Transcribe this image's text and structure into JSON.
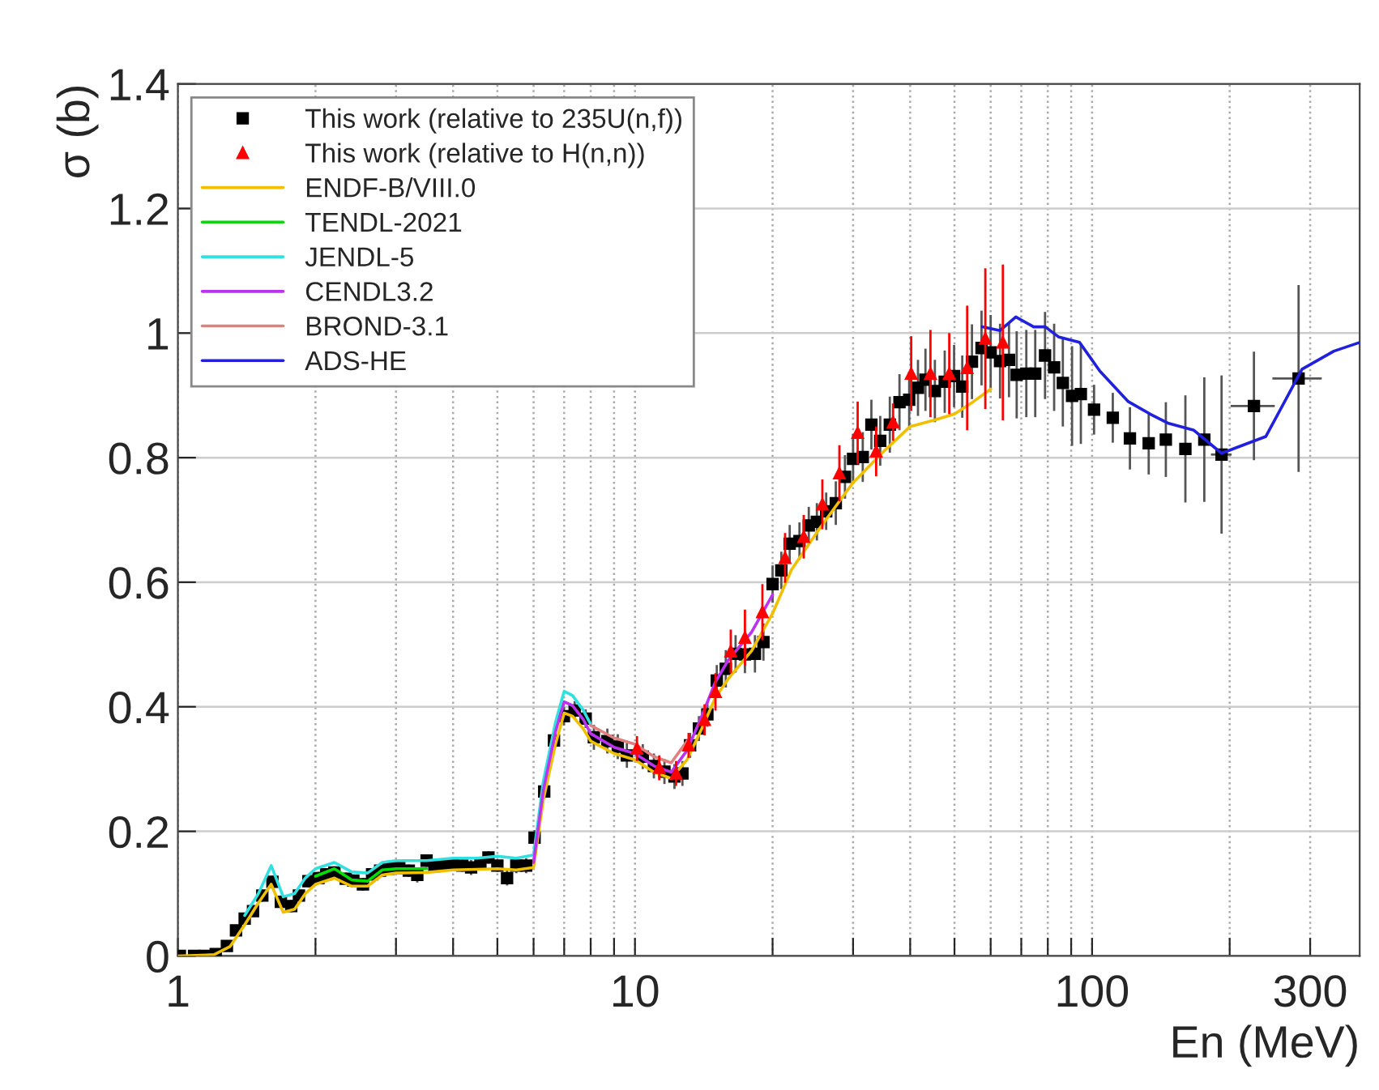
{
  "chart_data": {
    "type": "scatter",
    "xlabel": "En (MeV)",
    "ylabel": "σ (b)",
    "log": "x",
    "xlim": [
      1,
      385
    ],
    "ylim": [
      0,
      1.4
    ],
    "xticks": [
      1,
      {
        "value": 2,
        "label": null
      },
      {
        "value": 3,
        "label": null
      },
      {
        "value": 4,
        "label": null
      },
      {
        "value": 5,
        "label": null
      },
      {
        "value": 6,
        "label": null
      },
      {
        "value": 7,
        "label": null
      },
      {
        "value": 8,
        "label": null
      },
      {
        "value": 9,
        "label": null
      },
      10,
      {
        "value": 20,
        "label": null
      },
      {
        "value": 30,
        "label": null
      },
      {
        "value": 40,
        "label": null
      },
      {
        "value": 50,
        "label": null
      },
      {
        "value": 60,
        "label": null
      },
      {
        "value": 70,
        "label": null
      },
      {
        "value": 80,
        "label": null
      },
      {
        "value": 90,
        "label": null
      },
      100,
      {
        "value": 200,
        "label": null
      },
      300
    ],
    "yticks": [
      0,
      0.2,
      0.4,
      0.6,
      0.8,
      1,
      1.2,
      1.4
    ],
    "grid": true,
    "legend": "top left",
    "series": [
      {
        "name": "This work (relative to 235U(n,f))",
        "marker": "square",
        "color": "#000000",
        "x": [
          1.01,
          1.085,
          1.146,
          1.21,
          1.28,
          1.34,
          1.4,
          1.46,
          1.53,
          1.61,
          1.68,
          1.77,
          1.84,
          1.93,
          2.03,
          2.11,
          2.2,
          2.33,
          2.42,
          2.54,
          2.66,
          2.77,
          2.89,
          3.05,
          3.2,
          3.34,
          3.5,
          3.64,
          3.79,
          4.0,
          4.19,
          4.38,
          4.59,
          4.78,
          5.0,
          5.25,
          5.5,
          5.78,
          6.03,
          6.33,
          6.65,
          6.99,
          7.38,
          7.8,
          8.13,
          8.7,
          9.17,
          9.6,
          10.4,
          11.0,
          11.6,
          12.2,
          12.7,
          13.2,
          13.8,
          14.4,
          15.1,
          15.8,
          16.6,
          17.4,
          18.3,
          19.1,
          20.0,
          20.9,
          21.8,
          22.9,
          24.0,
          25.0,
          26.2,
          27.5,
          28.8,
          30.0,
          31.5,
          32.9,
          34.4,
          36.1,
          37.9,
          39.8,
          41.6,
          43.2,
          45.3,
          47.6,
          49.9,
          52.0,
          54.6,
          57.3,
          60.0,
          62.9,
          65.8,
          68.4,
          71.8,
          75.1,
          78.9,
          82.6,
          86.3,
          90.4,
          94.5,
          101,
          111,
          121,
          133,
          145,
          160,
          176,
          192,
          226,
          283
        ],
        "values": [
          0,
          0,
          0,
          0.003,
          0.016,
          0.041,
          0.06,
          0.072,
          0.097,
          0.119,
          0.087,
          0.08,
          0.097,
          0.12,
          0.125,
          0.131,
          0.134,
          0.124,
          0.121,
          0.115,
          0.131,
          0.137,
          0.14,
          0.141,
          0.137,
          0.13,
          0.153,
          0.144,
          0.146,
          0.146,
          0.145,
          0.142,
          0.149,
          0.158,
          0.145,
          0.125,
          0.145,
          0.145,
          0.19,
          0.264,
          0.346,
          0.385,
          0.394,
          0.381,
          0.351,
          0.345,
          0.336,
          0.322,
          0.32,
          0.305,
          0.296,
          0.288,
          0.293,
          0.338,
          0.365,
          0.388,
          0.442,
          0.461,
          0.485,
          0.484,
          0.485,
          0.504,
          0.597,
          0.619,
          0.662,
          0.666,
          0.691,
          0.697,
          0.714,
          0.727,
          0.769,
          0.798,
          0.801,
          0.853,
          0.827,
          0.853,
          0.889,
          0.893,
          0.912,
          0.925,
          0.907,
          0.922,
          0.931,
          0.914,
          0.954,
          0.976,
          0.969,
          0.955,
          0.957,
          0.933,
          0.935,
          0.935,
          0.964,
          0.945,
          0.92,
          0.899,
          0.902,
          0.877,
          0.864,
          0.831,
          0.823,
          0.829,
          0.814,
          0.829,
          0.805,
          0.883,
          0.927
        ],
        "errors": [
          0.005,
          0.005,
          0.005,
          0.005,
          0.006,
          0.008,
          0.008,
          0.008,
          0.01,
          0.01,
          0.01,
          0.01,
          0.01,
          0.01,
          0.01,
          0.01,
          0.01,
          0.01,
          0.01,
          0.01,
          0.01,
          0.01,
          0.01,
          0.01,
          0.01,
          0.012,
          0.01,
          0.01,
          0.01,
          0.01,
          0.01,
          0.012,
          0.01,
          0.01,
          0.01,
          0.012,
          0.012,
          0.012,
          0.012,
          0.012,
          0.015,
          0.015,
          0.015,
          0.015,
          0.02,
          0.02,
          0.02,
          0.02,
          0.02,
          0.02,
          0.02,
          0.02,
          0.02,
          0.02,
          0.02,
          0.02,
          0.025,
          0.03,
          0.03,
          0.03,
          0.03,
          0.03,
          0.03,
          0.03,
          0.03,
          0.03,
          0.03,
          0.03,
          0.03,
          0.035,
          0.035,
          0.04,
          0.04,
          0.04,
          0.04,
          0.045,
          0.045,
          0.045,
          0.045,
          0.05,
          0.05,
          0.05,
          0.05,
          0.05,
          0.06,
          0.06,
          0.06,
          0.06,
          0.06,
          0.07,
          0.07,
          0.07,
          0.07,
          0.07,
          0.07,
          0.08,
          0.08,
          0.04,
          0.04,
          0.05,
          0.05,
          0.06,
          0.086,
          0.1,
          0.127,
          0.087,
          0.15
        ],
        "xerrors": [
          null,
          null,
          null,
          null,
          null,
          null,
          null,
          null,
          null,
          null,
          null,
          null,
          null,
          null,
          null,
          null,
          null,
          null,
          null,
          null,
          null,
          null,
          null,
          null,
          null,
          null,
          null,
          null,
          null,
          null,
          null,
          null,
          null,
          null,
          null,
          null,
          null,
          null,
          null,
          null,
          null,
          null,
          null,
          null,
          null,
          null,
          null,
          null,
          null,
          null,
          null,
          null,
          null,
          null,
          null,
          null,
          null,
          null,
          null,
          null,
          null,
          null,
          null,
          null,
          null,
          null,
          null,
          null,
          null,
          null,
          null,
          null,
          null,
          null,
          null,
          null,
          null,
          null,
          null,
          null,
          null,
          null,
          null,
          null,
          null,
          null,
          null,
          null,
          null,
          null,
          null,
          null,
          null,
          null,
          null,
          null,
          null,
          null,
          null,
          null,
          null,
          null,
          null,
          null,
          10,
          25,
          35
        ]
      },
      {
        "name": "This work (relative to H(n,n))",
        "marker": "triangle",
        "color": "#ff0000",
        "x": [
          10.1,
          11.3,
          12.3,
          13.1,
          14.2,
          15.0,
          16.2,
          17.4,
          19.0,
          21.3,
          23.4,
          25.7,
          28.0,
          30.7,
          33.7,
          36.7,
          40.2,
          44.3,
          48.7,
          53.3,
          58.4,
          63.8
        ],
        "values": [
          0.333,
          0.302,
          0.293,
          0.338,
          0.379,
          0.424,
          0.489,
          0.511,
          0.552,
          0.639,
          0.673,
          0.725,
          0.775,
          0.84,
          0.81,
          0.857,
          0.935,
          0.935,
          0.935,
          0.944,
          0.991,
          0.985
        ],
        "errors": [
          0.02,
          0.02,
          0.02,
          0.02,
          0.025,
          0.03,
          0.035,
          0.045,
          0.045,
          0.04,
          0.035,
          0.04,
          0.045,
          0.05,
          0.04,
          0.03,
          0.06,
          0.07,
          0.065,
          0.1,
          0.113,
          0.125
        ]
      },
      {
        "name": "ENDF-B/VIII.0",
        "type": "line",
        "color": "#f0c000",
        "x": [
          1,
          1.2,
          1.3,
          1.4,
          1.5,
          1.6,
          1.7,
          1.8,
          1.9,
          2,
          2.2,
          2.4,
          2.6,
          2.8,
          3,
          3.5,
          4,
          4.5,
          5,
          5.5,
          6,
          6.3,
          6.7,
          7,
          7.3,
          7.7,
          8,
          9,
          10,
          11,
          12,
          13,
          14,
          15,
          16,
          18,
          20,
          22,
          25,
          28,
          30,
          35,
          40,
          45,
          50,
          55,
          60
        ],
        "values": [
          0,
          0.002,
          0.015,
          0.05,
          0.085,
          0.115,
          0.07,
          0.075,
          0.1,
          0.115,
          0.125,
          0.112,
          0.112,
          0.13,
          0.133,
          0.134,
          0.138,
          0.139,
          0.14,
          0.138,
          0.142,
          0.25,
          0.34,
          0.39,
          0.385,
          0.365,
          0.345,
          0.325,
          0.315,
          0.295,
          0.285,
          0.315,
          0.365,
          0.415,
          0.445,
          0.49,
          0.55,
          0.62,
          0.68,
          0.73,
          0.76,
          0.81,
          0.85,
          0.86,
          0.87,
          0.89,
          0.91
        ]
      },
      {
        "name": "TENDL-2021",
        "type": "line",
        "color": "#00dd00",
        "x": [
          2,
          2.2,
          2.4,
          2.6,
          2.8,
          3,
          3.5
        ],
        "values": [
          0.128,
          0.14,
          0.122,
          0.12,
          0.138,
          0.14,
          0.14
        ]
      },
      {
        "name": "JENDL-5",
        "type": "line",
        "color": "#33e0e0",
        "x": [
          1.4,
          1.5,
          1.6,
          1.7,
          1.8,
          1.9,
          2,
          2.2,
          2.4,
          2.6,
          2.8,
          3,
          3.5,
          4,
          4.5,
          5,
          5.5,
          6,
          6.3,
          6.7,
          7,
          7.3,
          7.7,
          8
        ],
        "values": [
          0.065,
          0.1,
          0.145,
          0.095,
          0.1,
          0.125,
          0.14,
          0.15,
          0.135,
          0.133,
          0.15,
          0.153,
          0.153,
          0.157,
          0.157,
          0.16,
          0.157,
          0.162,
          0.28,
          0.375,
          0.425,
          0.418,
          0.395,
          0.372
        ]
      },
      {
        "name": "CENDL3.2",
        "type": "line",
        "color": "#bb33ee",
        "x": [
          6,
          6.3,
          6.7,
          7,
          7.3,
          7.7,
          8,
          9,
          10,
          11,
          12,
          13,
          14,
          15,
          16,
          18,
          20
        ],
        "values": [
          0.15,
          0.265,
          0.36,
          0.408,
          0.402,
          0.38,
          0.357,
          0.335,
          0.325,
          0.305,
          0.295,
          0.33,
          0.385,
          0.44,
          0.475,
          0.52,
          0.58
        ]
      },
      {
        "name": "BROND-3.1",
        "type": "line",
        "color": "#e08080",
        "x": [
          8,
          9,
          10,
          11,
          12,
          13
        ],
        "values": [
          0.37,
          0.35,
          0.34,
          0.32,
          0.31,
          0.345
        ]
      },
      {
        "name": "ADS-HE",
        "type": "line",
        "color": "#2020dd",
        "x": [
          57.5,
          62.9,
          68.1,
          74.5,
          79,
          84.4,
          93.9,
          104,
          120,
          134,
          147,
          167,
          192,
          240,
          288,
          338,
          385
        ],
        "values": [
          1.01,
          1.004,
          1.026,
          1.01,
          1.01,
          0.994,
          0.985,
          0.939,
          0.89,
          0.87,
          0.855,
          0.844,
          0.807,
          0.834,
          0.942,
          0.971,
          0.985
        ]
      }
    ]
  }
}
